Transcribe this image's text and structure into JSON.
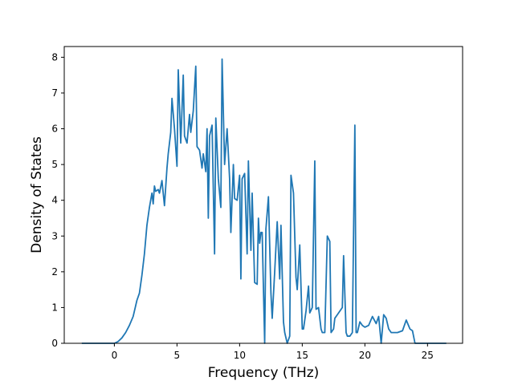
{
  "chart_data": {
    "type": "line",
    "title": "",
    "xlabel": "Frequency (THz)",
    "ylabel": "Density of States",
    "xlim": [
      -4.0,
      27.8
    ],
    "ylim": [
      0,
      8.3
    ],
    "xticks": [
      0,
      5,
      10,
      15,
      20,
      25
    ],
    "yticks": [
      0,
      1,
      2,
      3,
      4,
      5,
      6,
      7,
      8
    ],
    "grid": false,
    "legend": "none",
    "series": [
      {
        "color": "#1f77b4",
        "x": [
          -2.6,
          -1.0,
          0.0,
          0.3,
          0.6,
          0.9,
          1.2,
          1.5,
          1.8,
          2.0,
          2.2,
          2.4,
          2.6,
          2.8,
          3.0,
          3.1,
          3.2,
          3.3,
          3.5,
          3.6,
          3.8,
          4.0,
          4.2,
          4.3,
          4.5,
          4.6,
          4.8,
          5.0,
          5.1,
          5.3,
          5.5,
          5.6,
          5.8,
          6.0,
          6.1,
          6.3,
          6.5,
          6.6,
          6.8,
          7.0,
          7.1,
          7.3,
          7.4,
          7.5,
          7.6,
          7.8,
          8.0,
          8.1,
          8.3,
          8.5,
          8.6,
          8.8,
          9.0,
          9.2,
          9.3,
          9.5,
          9.6,
          9.8,
          10.0,
          10.1,
          10.2,
          10.4,
          10.6,
          10.7,
          10.9,
          11.0,
          11.2,
          11.4,
          11.5,
          11.6,
          11.7,
          11.8,
          12.0,
          12.1,
          12.3,
          12.5,
          12.6,
          12.8,
          13.0,
          13.2,
          13.3,
          13.5,
          13.6,
          13.8,
          14.0,
          14.1,
          14.3,
          14.5,
          14.6,
          14.8,
          15.0,
          15.1,
          15.3,
          15.5,
          15.6,
          15.8,
          16.0,
          16.1,
          16.3,
          16.5,
          16.6,
          16.8,
          17.0,
          17.2,
          17.3,
          17.5,
          17.6,
          17.8,
          18.0,
          18.2,
          18.3,
          18.5,
          18.6,
          18.8,
          19.0,
          19.2,
          19.3,
          19.4,
          19.6,
          19.8,
          20.0,
          20.3,
          20.6,
          20.9,
          21.1,
          21.3,
          21.5,
          21.7,
          21.9,
          22.1,
          22.3,
          22.6,
          23.0,
          23.3,
          23.6,
          23.8,
          24.0,
          24.1,
          24.5,
          25.0,
          26.5
        ],
        "y": [
          0,
          0,
          0,
          0.05,
          0.15,
          0.3,
          0.5,
          0.75,
          1.2,
          1.4,
          1.9,
          2.5,
          3.3,
          3.8,
          4.2,
          3.9,
          4.4,
          4.25,
          4.3,
          4.2,
          4.55,
          3.85,
          4.9,
          5.3,
          5.9,
          6.85,
          6.0,
          4.95,
          7.65,
          5.6,
          7.5,
          5.8,
          5.6,
          6.4,
          5.9,
          6.5,
          7.75,
          5.5,
          5.4,
          4.9,
          5.3,
          4.8,
          6.0,
          3.5,
          5.8,
          6.1,
          2.5,
          6.3,
          4.6,
          3.8,
          7.95,
          5.0,
          6.0,
          4.6,
          3.1,
          5.0,
          4.05,
          4.0,
          4.7,
          1.8,
          4.6,
          4.75,
          2.5,
          5.1,
          2.6,
          4.2,
          1.7,
          1.65,
          3.5,
          2.8,
          3.1,
          3.1,
          0,
          3.2,
          4.1,
          1.4,
          0.7,
          2.0,
          3.4,
          1.8,
          3.3,
          0.6,
          0.3,
          0,
          0.2,
          4.7,
          4.2,
          1.85,
          1.5,
          2.75,
          0.4,
          0.4,
          0.9,
          1.6,
          0.85,
          1.0,
          5.1,
          0.95,
          1.0,
          0.4,
          0.3,
          0.3,
          3.0,
          2.85,
          0.3,
          0.4,
          0.7,
          0.8,
          0.9,
          1.0,
          2.45,
          0.3,
          0.2,
          0.2,
          0.3,
          6.1,
          0.3,
          0.3,
          0.6,
          0.5,
          0.45,
          0.5,
          0.75,
          0.55,
          0.75,
          0,
          0.8,
          0.7,
          0.4,
          0.3,
          0.3,
          0.3,
          0.35,
          0.65,
          0.4,
          0.35,
          0,
          0,
          0,
          0,
          0
        ]
      }
    ]
  }
}
